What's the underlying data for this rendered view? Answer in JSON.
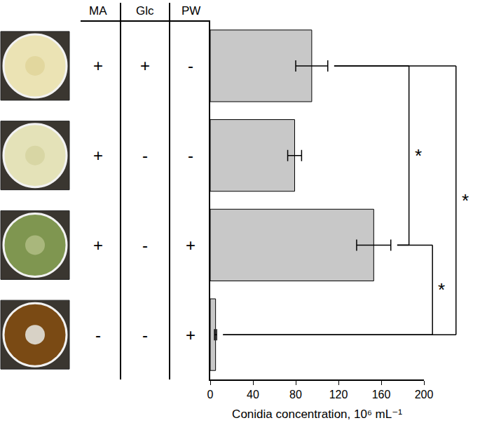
{
  "chart_data": {
    "type": "bar",
    "orientation": "horizontal",
    "categories": [
      null,
      null,
      null,
      null
    ],
    "values": [
      95,
      79,
      153,
      5
    ],
    "errors": [
      15,
      6.5,
      16,
      1
    ],
    "color": "#c8c8c8",
    "xlabel": "Conidia concentration, 10⁶ mL⁻¹",
    "xlim": [
      0,
      200
    ],
    "xticks": [
      0,
      40,
      80,
      120,
      160,
      200
    ],
    "grid": false,
    "tick_labels": "x",
    "table": {
      "columns": [
        "MA",
        "Glc",
        "PW"
      ],
      "rows": [
        [
          "+",
          "+",
          "-"
        ],
        [
          "+",
          "-",
          "-"
        ],
        [
          "+",
          "-",
          "+"
        ],
        [
          "-",
          "-",
          "+"
        ]
      ]
    },
    "significance": [
      {
        "rows": [
          0,
          2
        ],
        "label": "*"
      },
      {
        "rows": [
          2,
          3
        ],
        "label": "*"
      },
      {
        "rows": [
          0,
          3
        ],
        "label": "*"
      }
    ]
  }
}
